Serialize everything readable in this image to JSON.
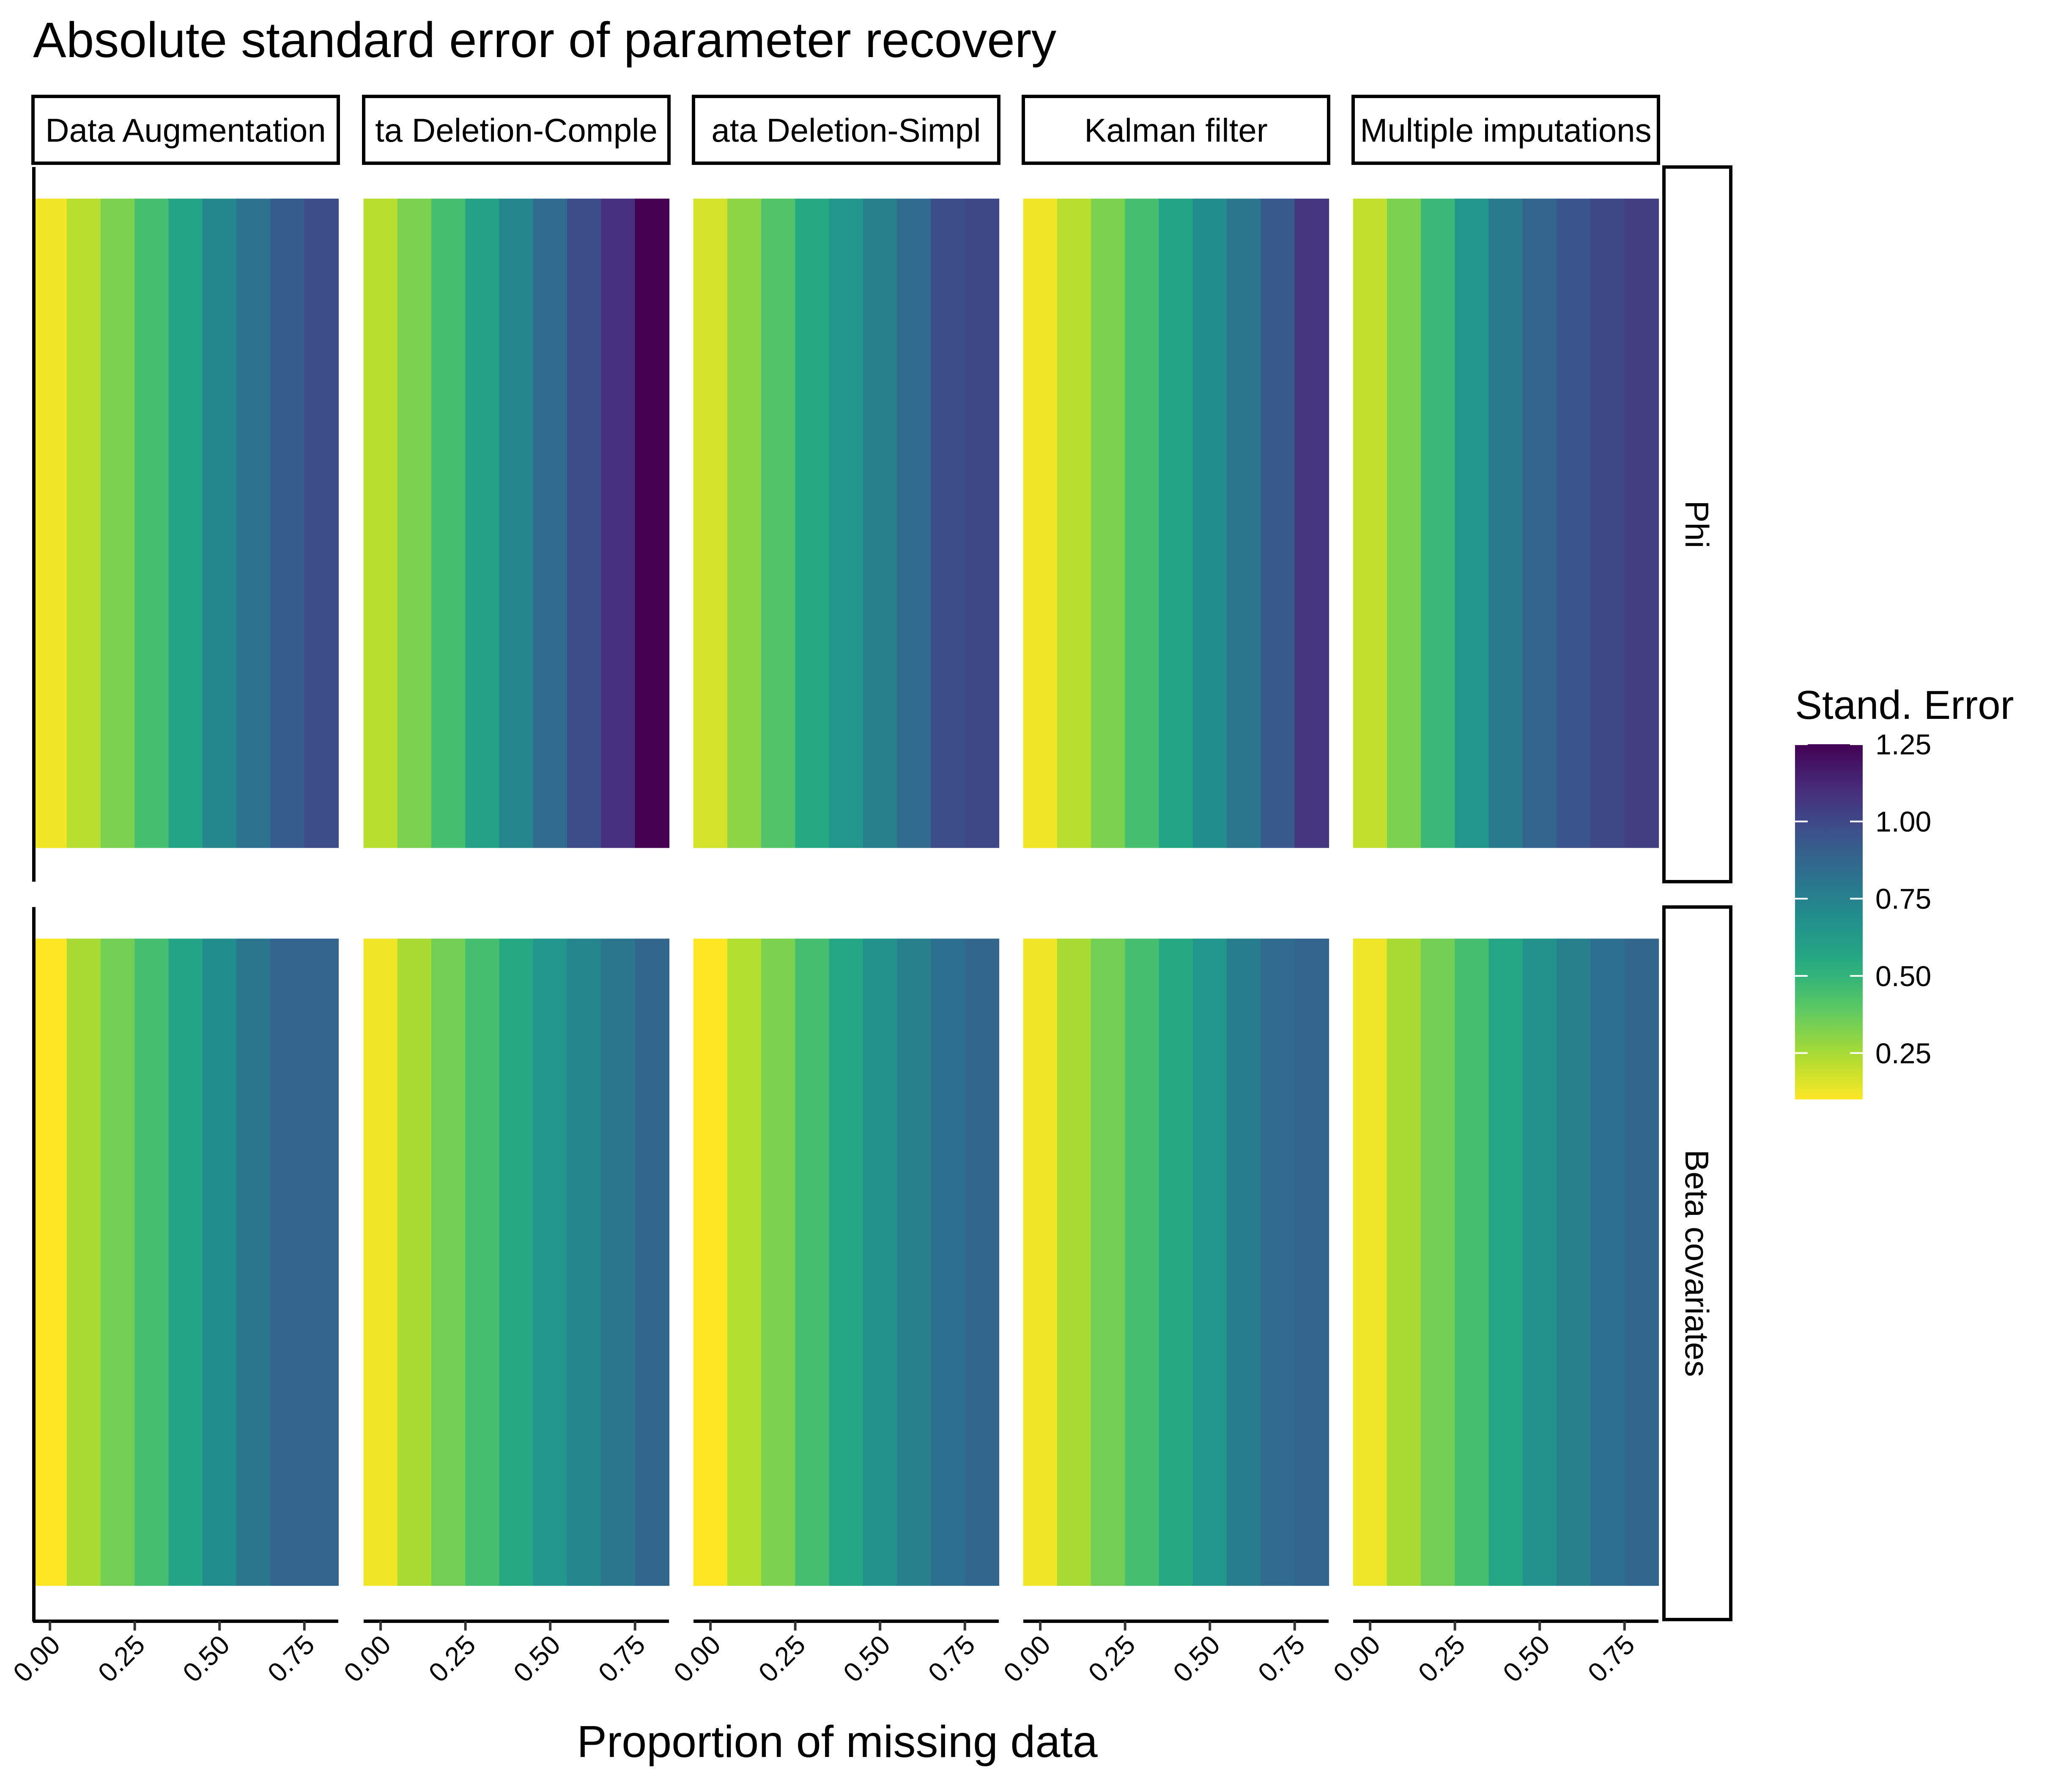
{
  "chart_data": {
    "type": "heatmap",
    "title": "Absolute standard error of parameter recovery",
    "xlabel": "Proportion of missing data",
    "ylabel": "",
    "x_ticks": [
      "0.00",
      "0.25",
      "0.50",
      "0.75"
    ],
    "x_tick_values": [
      0,
      0.25,
      0.5,
      0.75
    ],
    "xlim": [
      -0.05,
      0.85
    ],
    "x": [
      0,
      0.1,
      0.2,
      0.3,
      0.4,
      0.5,
      0.6,
      0.7,
      0.8
    ],
    "columns": [
      "Data Augmentation",
      "Data Deletion-Complete",
      "Data Deletion-Simple",
      "Kalman filter",
      "Multiple imputations"
    ],
    "column_labels": [
      "Data Augmentation",
      "ta Deletion-Comple",
      "ata Deletion-Simpl",
      "Kalman filter",
      "Multiple imputations"
    ],
    "rows": [
      "Phi",
      "Beta covariates"
    ],
    "values": {
      "Phi": {
        "Data Augmentation": [
          0.12,
          0.22,
          0.33,
          0.45,
          0.58,
          0.72,
          0.82,
          0.92,
          0.98
        ],
        "Data Deletion-Complete": [
          0.22,
          0.33,
          0.45,
          0.6,
          0.73,
          0.85,
          0.98,
          1.1,
          1.25
        ],
        "Data Deletion-Simple": [
          0.17,
          0.3,
          0.42,
          0.55,
          0.65,
          0.75,
          0.85,
          0.98,
          1.0
        ],
        "Kalman filter": [
          0.12,
          0.22,
          0.33,
          0.45,
          0.58,
          0.7,
          0.8,
          0.93,
          1.07
        ],
        "Multiple imputations": [
          0.2,
          0.33,
          0.48,
          0.65,
          0.78,
          0.88,
          0.95,
          1.0,
          1.04
        ]
      },
      "Beta covariates": {
        "Data Augmentation": [
          0.1,
          0.25,
          0.35,
          0.45,
          0.58,
          0.7,
          0.8,
          0.88,
          0.88
        ],
        "Data Deletion-Complete": [
          0.12,
          0.25,
          0.35,
          0.45,
          0.55,
          0.65,
          0.73,
          0.8,
          0.87
        ],
        "Data Deletion-Simple": [
          0.1,
          0.23,
          0.33,
          0.45,
          0.57,
          0.67,
          0.75,
          0.83,
          0.87
        ],
        "Kalman filter": [
          0.12,
          0.25,
          0.35,
          0.45,
          0.55,
          0.65,
          0.77,
          0.85,
          0.88
        ],
        "Multiple imputations": [
          0.13,
          0.25,
          0.35,
          0.45,
          0.57,
          0.67,
          0.75,
          0.83,
          0.87
        ]
      }
    },
    "legend": {
      "title": "Stand. Error",
      "ticks": [
        "0.25",
        "0.50",
        "0.75",
        "1.00",
        "1.25"
      ],
      "tick_values": [
        0.25,
        0.5,
        0.75,
        1.0,
        1.25
      ],
      "range": [
        0.1,
        1.25
      ],
      "placement": "right",
      "colormap": "viridis (reversed)"
    },
    "grid": false
  }
}
